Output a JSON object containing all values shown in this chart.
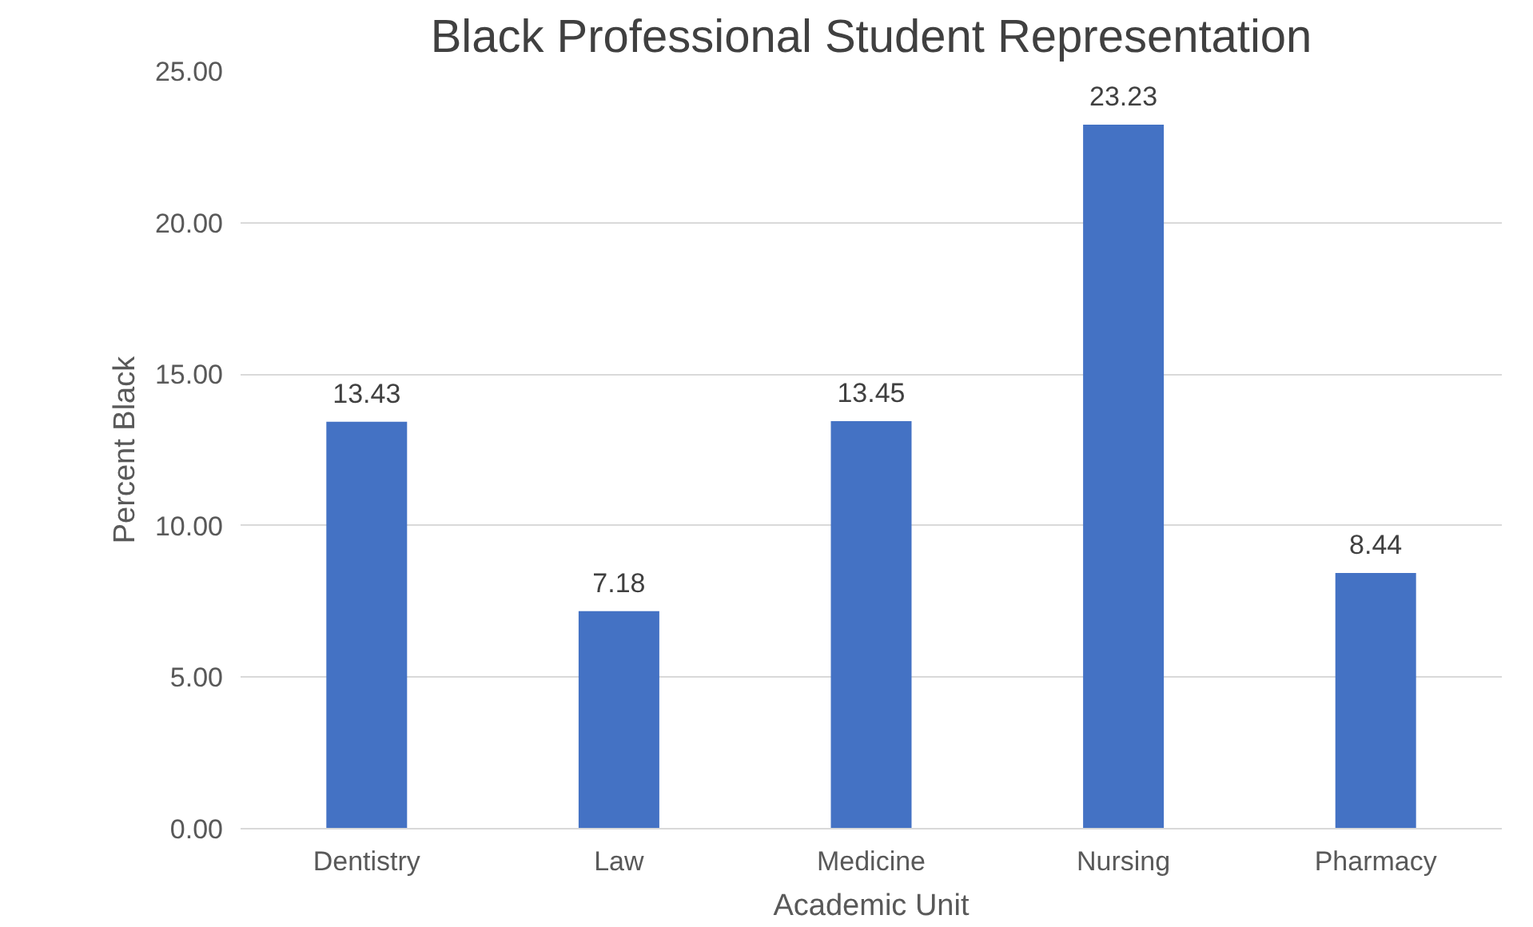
{
  "chart_data": {
    "type": "bar",
    "title": "Black Professional Student Representation",
    "xlabel": "Academic Unit",
    "ylabel": "Percent Black",
    "categories": [
      "Dentistry",
      "Law",
      "Medicine",
      "Nursing",
      "Pharmacy"
    ],
    "series": [
      {
        "color": "#4472c4",
        "values": [
          13.43,
          7.18,
          13.45,
          23.23,
          8.44
        ]
      }
    ],
    "ylim": [
      0,
      25
    ],
    "yticks": [
      {
        "value": 0,
        "label": "0.00"
      },
      {
        "value": 5,
        "label": "5.00"
      },
      {
        "value": 10,
        "label": "10.00"
      },
      {
        "value": 15,
        "label": "15.00"
      },
      {
        "value": 20,
        "label": "20.00"
      },
      {
        "value": 25,
        "label": "25.00"
      }
    ],
    "grid": "y",
    "data_labels": true
  }
}
